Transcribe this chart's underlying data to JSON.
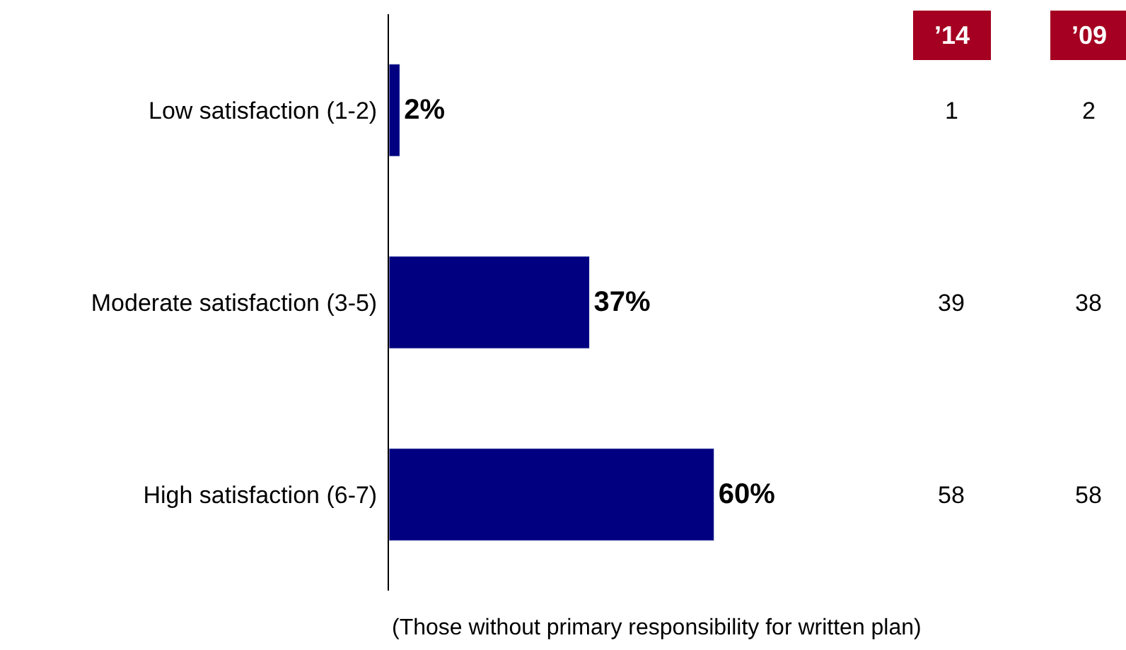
{
  "chart_data": {
    "type": "bar",
    "orientation": "horizontal",
    "categories": [
      "Low satisfaction (1-2)",
      "Moderate satisfaction (3-5)",
      "High satisfaction (6-7)"
    ],
    "values": [
      2,
      37,
      60
    ],
    "value_labels": [
      "2%",
      "37%",
      "60%"
    ],
    "color": "#000080",
    "annotations": [
      "(Those without primary responsibility for written plan)",
      "’14",
      "’09",
      "1",
      "2",
      "39",
      "38",
      "58",
      "58"
    ]
  }
}
